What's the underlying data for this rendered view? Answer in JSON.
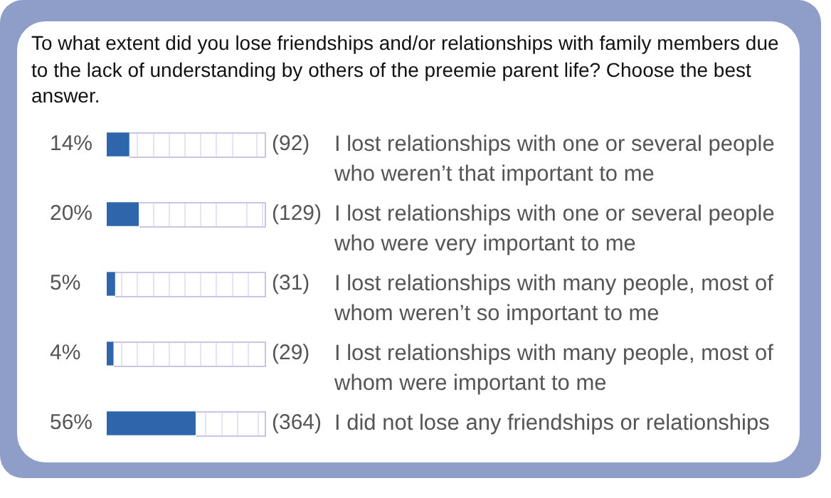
{
  "chart_data": {
    "type": "bar",
    "orientation": "horizontal",
    "title": "To what extent did you lose friendships and/or relationships with family members due to the lack of understanding by others of the preemie parent life? Choose the best answer.",
    "categories": [
      "I lost relationships with one or several people who weren’t that important to me",
      "I lost relationships with one or several people who were very important to me",
      "I lost relationships with many people, most of whom weren’t so important to me",
      "I lost relationships with many people, most of whom were important to me",
      "I did not lose any friendships or relationships"
    ],
    "values": [
      14,
      20,
      5,
      4,
      56
    ],
    "value_labels": [
      "14%",
      "20%",
      "5%",
      "4%",
      "56%"
    ],
    "color": "#2f66ab",
    "xlim": [
      0,
      100
    ],
    "grid": true,
    "annotations": [
      "(92)",
      "(129)",
      "(31)",
      "(29)",
      "(364)"
    ]
  }
}
